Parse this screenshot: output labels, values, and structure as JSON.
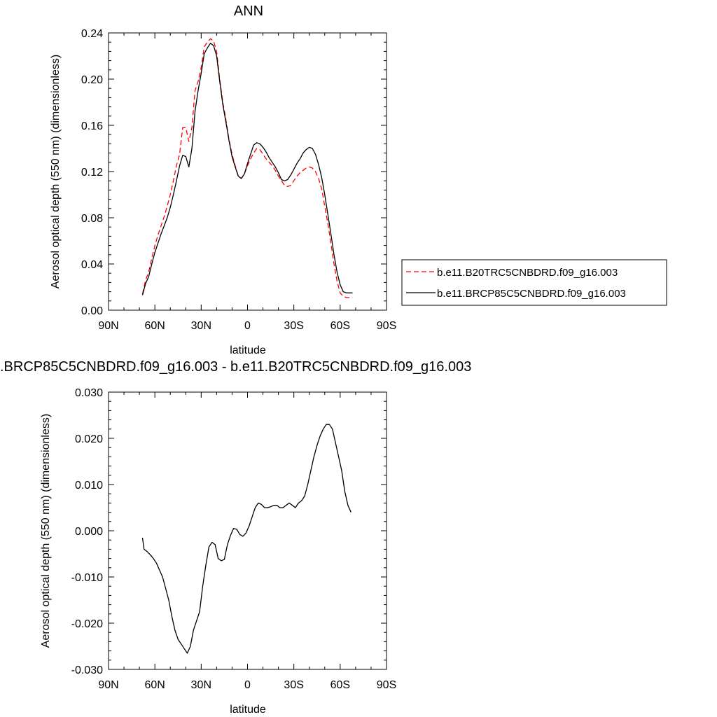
{
  "chart_data": [
    {
      "type": "line",
      "title": "ANN",
      "xlabel": "latitude",
      "ylabel": "Aerosol optical depth (550 nm) (dimensionless)",
      "xlim": [
        90,
        -90
      ],
      "ylim": [
        0.0,
        0.24
      ],
      "x_ticks": [
        90,
        60,
        30,
        0,
        -30,
        -60,
        -90
      ],
      "x_tick_labels": [
        "90N",
        "60N",
        "30N",
        "0",
        "30S",
        "60S",
        "90S"
      ],
      "y_ticks": [
        0.0,
        0.04,
        0.08,
        0.12,
        0.16,
        0.2,
        0.24
      ],
      "y_tick_labels": [
        "0.00",
        "0.04",
        "0.08",
        "0.12",
        "0.16",
        "0.20",
        "0.24"
      ],
      "legend_position": "right",
      "series": [
        {
          "name": "b.e11.B20TRC5CNBDRD.f09_g16.003",
          "color": "#ff0000",
          "dash": "dashed",
          "x": [
            68,
            66,
            64,
            62,
            60,
            58,
            56,
            54,
            52,
            50,
            48,
            46,
            44,
            42,
            40,
            38,
            36,
            34,
            32,
            30,
            28,
            26,
            24,
            22,
            20,
            18,
            16,
            14,
            12,
            10,
            8,
            6,
            4,
            2,
            0,
            -2,
            -4,
            -6,
            -8,
            -10,
            -12,
            -14,
            -16,
            -18,
            -20,
            -22,
            -24,
            -26,
            -28,
            -30,
            -32,
            -34,
            -36,
            -38,
            -40,
            -42,
            -44,
            -46,
            -48,
            -50,
            -52,
            -54,
            -56,
            -58,
            -60,
            -62,
            -64,
            -66,
            -68
          ],
          "y": [
            0.014,
            0.026,
            0.033,
            0.045,
            0.056,
            0.065,
            0.073,
            0.081,
            0.09,
            0.1,
            0.112,
            0.125,
            0.135,
            0.158,
            0.158,
            0.146,
            0.158,
            0.19,
            0.198,
            0.21,
            0.228,
            0.232,
            0.235,
            0.233,
            0.224,
            0.2,
            0.18,
            0.165,
            0.148,
            0.135,
            0.125,
            0.116,
            0.114,
            0.118,
            0.125,
            0.131,
            0.136,
            0.14,
            0.139,
            0.135,
            0.131,
            0.128,
            0.125,
            0.121,
            0.116,
            0.112,
            0.108,
            0.107,
            0.108,
            0.112,
            0.116,
            0.119,
            0.121,
            0.123,
            0.124,
            0.123,
            0.12,
            0.114,
            0.105,
            0.09,
            0.075,
            0.058,
            0.04,
            0.025,
            0.015,
            0.012,
            0.011,
            0.011,
            0.011
          ]
        },
        {
          "name": "b.e11.BRCP85C5CNBDRD.f09_g16.003",
          "color": "#000000",
          "dash": "solid",
          "x": [
            68,
            66,
            64,
            62,
            60,
            58,
            56,
            54,
            52,
            50,
            48,
            46,
            44,
            42,
            40,
            38,
            36,
            34,
            32,
            30,
            28,
            26,
            24,
            22,
            20,
            18,
            16,
            14,
            12,
            10,
            8,
            6,
            4,
            2,
            0,
            -2,
            -4,
            -6,
            -8,
            -10,
            -12,
            -14,
            -16,
            -18,
            -20,
            -22,
            -24,
            -26,
            -28,
            -30,
            -32,
            -34,
            -36,
            -38,
            -40,
            -42,
            -44,
            -46,
            -48,
            -50,
            -52,
            -54,
            -56,
            -58,
            -60,
            -62,
            -64,
            -66,
            -68
          ],
          "y": [
            0.013,
            0.023,
            0.029,
            0.04,
            0.05,
            0.058,
            0.066,
            0.073,
            0.08,
            0.089,
            0.1,
            0.112,
            0.125,
            0.134,
            0.133,
            0.124,
            0.14,
            0.172,
            0.19,
            0.205,
            0.222,
            0.227,
            0.231,
            0.229,
            0.22,
            0.198,
            0.178,
            0.163,
            0.147,
            0.133,
            0.124,
            0.116,
            0.114,
            0.118,
            0.127,
            0.135,
            0.143,
            0.145,
            0.144,
            0.141,
            0.137,
            0.132,
            0.128,
            0.124,
            0.119,
            0.113,
            0.112,
            0.113,
            0.117,
            0.122,
            0.127,
            0.131,
            0.136,
            0.139,
            0.141,
            0.14,
            0.135,
            0.126,
            0.115,
            0.1,
            0.083,
            0.066,
            0.048,
            0.033,
            0.022,
            0.016,
            0.015,
            0.015,
            0.015
          ]
        }
      ]
    },
    {
      "type": "line",
      "title": ".BRCP85C5CNBDRD.f09_g16.003 - b.e11.B20TRC5CNBDRD.f09_g16.003",
      "xlabel": "latitude",
      "ylabel": "Aerosol optical depth (550 nm) (dimensionless)",
      "xlim": [
        90,
        -90
      ],
      "ylim": [
        -0.03,
        0.03
      ],
      "x_ticks": [
        90,
        60,
        30,
        0,
        -30,
        -60,
        -90
      ],
      "x_tick_labels": [
        "90N",
        "60N",
        "30N",
        "0",
        "30S",
        "60S",
        "90S"
      ],
      "y_ticks": [
        -0.03,
        -0.02,
        -0.01,
        0.0,
        0.01,
        0.02,
        0.03
      ],
      "y_tick_labels": [
        "-0.030",
        "-0.020",
        "-0.010",
        "0.000",
        "0.010",
        "0.020",
        "0.030"
      ],
      "series": [
        {
          "color": "#000000",
          "dash": "solid",
          "x": [
            68,
            67,
            65,
            63,
            61,
            59,
            57,
            55,
            53,
            51,
            49,
            47,
            45,
            43,
            41,
            39,
            37,
            35,
            33,
            31,
            29,
            27,
            25,
            23,
            21,
            19,
            17,
            15,
            13,
            11,
            9,
            7,
            5,
            3,
            1,
            -1,
            -3,
            -5,
            -7,
            -9,
            -11,
            -13,
            -15,
            -17,
            -19,
            -21,
            -23,
            -25,
            -27,
            -29,
            -31,
            -33,
            -35,
            -37,
            -39,
            -41,
            -43,
            -45,
            -47,
            -49,
            -51,
            -53,
            -55,
            -57,
            -59,
            -61,
            -63,
            -65,
            -67
          ],
          "y": [
            -0.0015,
            -0.004,
            -0.0045,
            -0.0052,
            -0.006,
            -0.007,
            -0.0085,
            -0.01,
            -0.0125,
            -0.015,
            -0.0185,
            -0.0215,
            -0.0235,
            -0.0245,
            -0.0255,
            -0.0265,
            -0.025,
            -0.0215,
            -0.0195,
            -0.0175,
            -0.012,
            -0.0075,
            -0.0035,
            -0.0025,
            -0.003,
            -0.006,
            -0.0065,
            -0.0062,
            -0.003,
            -0.001,
            0.0005,
            0.0003,
            -0.0008,
            -0.0012,
            -0.0005,
            0.001,
            0.003,
            0.005,
            0.006,
            0.0057,
            0.005,
            0.005,
            0.0052,
            0.0055,
            0.0055,
            0.005,
            0.005,
            0.0055,
            0.006,
            0.0055,
            0.005,
            0.006,
            0.0065,
            0.0075,
            0.01,
            0.013,
            0.016,
            0.0185,
            0.0205,
            0.022,
            0.023,
            0.023,
            0.022,
            0.019,
            0.016,
            0.013,
            0.0085,
            0.0055,
            0.004
          ]
        }
      ]
    }
  ]
}
